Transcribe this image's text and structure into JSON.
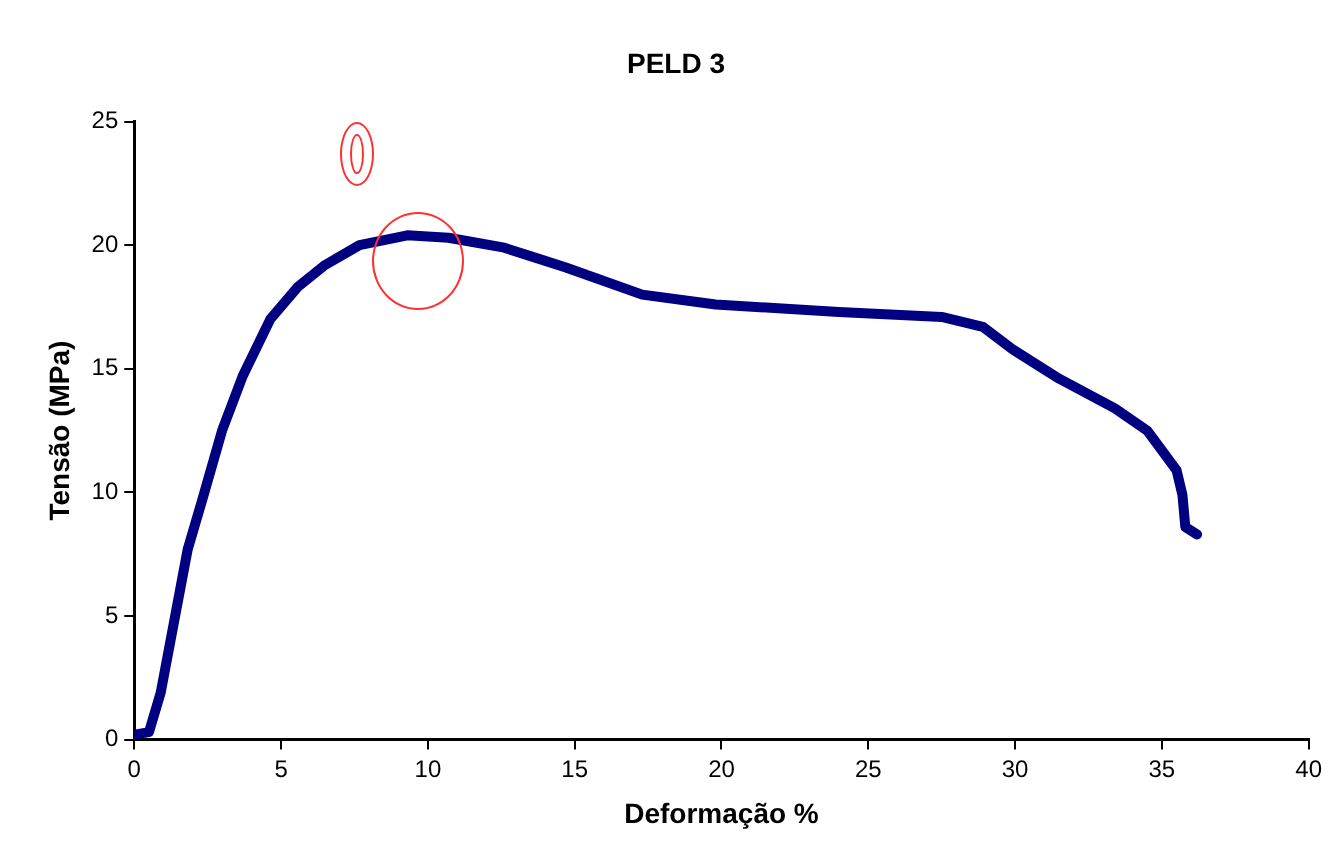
{
  "chart_data": {
    "type": "line",
    "title": "PELD 3",
    "xlabel": "Deformação %",
    "ylabel": "Tensão (MPa)",
    "x": [
      0,
      0.5,
      0.9,
      1.36,
      1.82,
      2.29,
      2.99,
      3.69,
      4.63,
      5.56,
      6.5,
      7.67,
      9.3,
      10.7,
      12.6,
      14.7,
      17.3,
      19.8,
      24.0,
      27.5,
      28.9,
      29.9,
      31.5,
      33.4,
      34.5,
      35.5,
      35.7,
      35.8,
      36.2
    ],
    "series": [
      {
        "color": "#000080",
        "values": [
          0.2,
          0.3,
          1.9,
          4.8,
          7.7,
          9.6,
          12.5,
          14.7,
          17.0,
          18.3,
          19.2,
          20.0,
          20.4,
          20.3,
          19.9,
          19.1,
          18.0,
          17.6,
          17.3,
          17.1,
          16.7,
          15.8,
          14.6,
          13.4,
          12.5,
          10.9,
          9.9,
          8.6,
          8.3
        ]
      }
    ],
    "xlim": [
      0,
      40
    ],
    "xticks": [
      0,
      5,
      10,
      15,
      20,
      25,
      30,
      35,
      40
    ],
    "ylim": [
      0,
      25
    ],
    "yticks": [
      0,
      5,
      10,
      15,
      20,
      25
    ],
    "grid": false,
    "legend": false,
    "marker": "none",
    "line_style": "solid"
  }
}
